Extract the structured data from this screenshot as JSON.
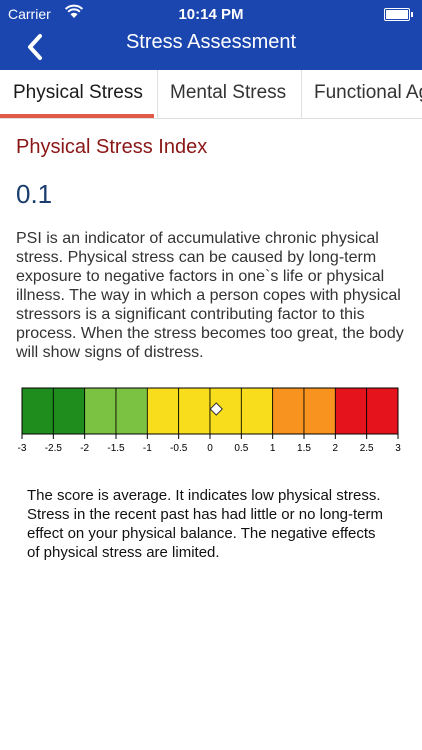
{
  "status_bar": {
    "carrier": "Carrier",
    "time": "10:14 PM",
    "wifi_icon": "wifi-icon",
    "battery_icon": "battery-icon"
  },
  "nav": {
    "title": "Stress Assessment",
    "back_icon": "chevron-left-icon"
  },
  "tabs": [
    {
      "label": "Physical Stress",
      "active": true
    },
    {
      "label": "Mental Stress",
      "active": false
    },
    {
      "label": "Functional Ag",
      "active": false
    }
  ],
  "index": {
    "title": "Physical Stress Index",
    "value": "0.1"
  },
  "description": "PSI is an indicator of accumulative chronic physical stress. Physical stress can be caused by long-term exposure to negative factors in one`s life or physical illness. The way in which a person copes with physical stressors is a significant contributing factor to this process. When the stress becomes too great, the body will show signs of distress.",
  "scale": {
    "min": -3,
    "max": 3,
    "marker_value": 0.1,
    "tick_labels": [
      "-3",
      "-2.5",
      "-2",
      "-1.5",
      "-1",
      "-0.5",
      "0",
      "0.5",
      "1",
      "1.5",
      "2",
      "2.5",
      "3"
    ],
    "segment_colors": [
      "#1f8c1e",
      "#1f8c1e",
      "#7cc242",
      "#7cc242",
      "#f7dd1c",
      "#f7dd1c",
      "#f7dd1c",
      "#f7dd1c",
      "#f7931e",
      "#f7931e",
      "#e5131b",
      "#e5131b"
    ]
  },
  "result_text": "The score is average. It indicates low physical stress. Stress in the recent past has had little or no long-term effect on your physical balance. The negative effects of physical stress are limited.",
  "colors": {
    "nav_background": "#1b46b0",
    "tab_underline": "#e05a48",
    "index_title": "#8b1616",
    "index_value": "#1b3d6e"
  }
}
